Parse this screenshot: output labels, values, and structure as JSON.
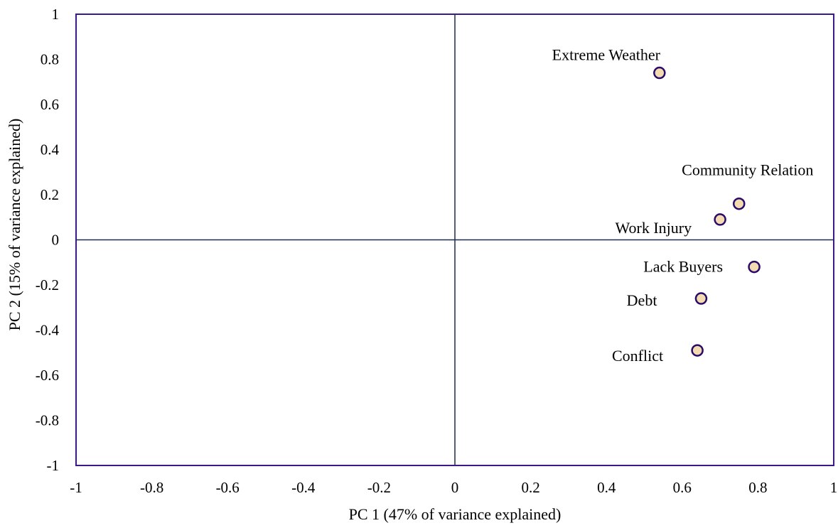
{
  "chart_data": {
    "type": "scatter",
    "title": "",
    "xlabel": "PC 1 (47% of variance explained)",
    "ylabel": "PC 2 (15% of variance explained)",
    "xlim": [
      -1,
      1
    ],
    "ylim": [
      -1,
      1
    ],
    "x_ticks": [
      "-1",
      "-0.8",
      "-0.6",
      "-0.4",
      "-0.2",
      "0",
      "0.2",
      "0.4",
      "0.6",
      "0.8",
      "1"
    ],
    "y_ticks": [
      "1",
      "0.8",
      "0.6",
      "0.4",
      "0.2",
      "0",
      "-0.2",
      "-0.4",
      "-0.6",
      "-0.8",
      "-1"
    ],
    "grid": false,
    "zero_lines": true,
    "colors": {
      "frame": "#3a1a8a",
      "zero_line": "#1f2d4a",
      "marker_fill": "#f3dbb1",
      "marker_stroke": "#2a0a6a"
    },
    "points": [
      {
        "label": "Extreme Weather",
        "x": 0.54,
        "y": 0.74
      },
      {
        "label": "Community Relation",
        "x": 0.75,
        "y": 0.16
      },
      {
        "label": "Work Injury",
        "x": 0.7,
        "y": 0.09
      },
      {
        "label": "Lack Buyers",
        "x": 0.79,
        "y": -0.12
      },
      {
        "label": "Debt",
        "x": 0.65,
        "y": -0.26
      },
      {
        "label": "Conflict",
        "x": 0.64,
        "y": -0.49
      }
    ]
  }
}
